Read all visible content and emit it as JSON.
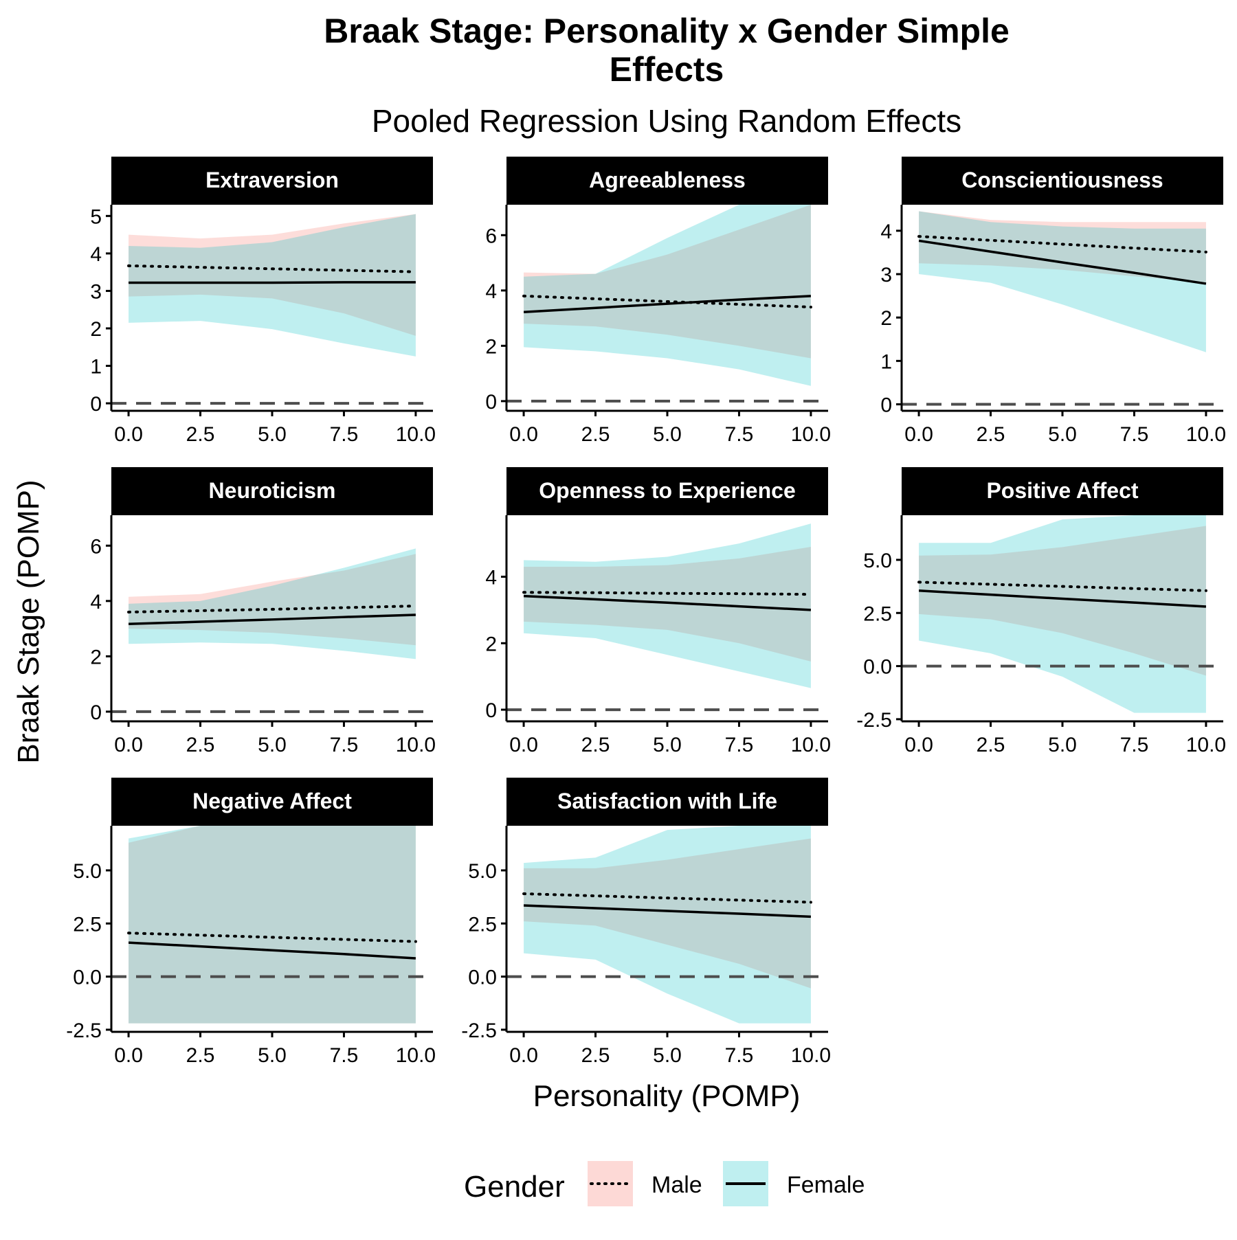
{
  "title": "Braak Stage: Personality x Gender Simple Effects",
  "title_lines": [
    "Braak Stage: Personality x Gender Simple",
    "Effects"
  ],
  "subtitle": "Pooled Regression Using Random Effects",
  "colors": {
    "male": "#F8766D",
    "female": "#00BFC4",
    "line": "#000000",
    "zero": "#4d4d4d",
    "strip": "#000000"
  },
  "chart_data": {
    "type": "line",
    "xlabel": "Personality (POMP)",
    "ylabel": "Braak Stage (POMP)",
    "legend": {
      "title": "Gender",
      "position": "bottom",
      "items": [
        {
          "name": "Male",
          "linetype": "dotted",
          "fill": "#F8766D"
        },
        {
          "name": "Female",
          "linetype": "solid",
          "fill": "#00BFC4"
        }
      ]
    },
    "reference_line": {
      "y": 0,
      "style": "dashed"
    },
    "x_ticks": [
      "0.0",
      "2.5",
      "5.0",
      "7.5",
      "10.0"
    ],
    "xlim": [
      -0.6,
      10.6
    ],
    "panels": [
      {
        "label": "Extraversion",
        "ylim": [
          -0.2,
          5.3
        ],
        "y_ticks": [
          0,
          1,
          2,
          3,
          4,
          5
        ],
        "y_tick_labels": [
          "0",
          "1",
          "2",
          "3",
          "4",
          "5"
        ],
        "x": [
          0,
          2.5,
          5,
          7.5,
          10
        ],
        "series": [
          {
            "name": "Male",
            "mean": [
              3.67,
              3.63,
              3.59,
              3.55,
              3.51
            ],
            "lower": [
              2.85,
              2.9,
              2.8,
              2.4,
              1.8
            ],
            "upper": [
              4.5,
              4.4,
              4.5,
              4.8,
              5.05
            ]
          },
          {
            "name": "Female",
            "mean": [
              3.22,
              3.22,
              3.22,
              3.23,
              3.23
            ],
            "lower": [
              2.15,
              2.2,
              1.98,
              1.6,
              1.25
            ],
            "upper": [
              4.2,
              4.15,
              4.3,
              4.7,
              5.05
            ]
          }
        ]
      },
      {
        "label": "Agreeableness",
        "ylim": [
          -0.35,
          7.1
        ],
        "y_ticks": [
          0,
          2,
          4,
          6
        ],
        "y_tick_labels": [
          "0",
          "2",
          "4",
          "6"
        ],
        "x": [
          0,
          2.5,
          5,
          7.5,
          10
        ],
        "series": [
          {
            "name": "Male",
            "mean": [
              3.8,
              3.7,
              3.6,
              3.5,
              3.4
            ],
            "lower": [
              2.8,
              2.7,
              2.4,
              2.0,
              1.55
            ],
            "upper": [
              4.65,
              4.6,
              5.3,
              6.2,
              7.1
            ]
          },
          {
            "name": "Female",
            "mean": [
              3.22,
              3.37,
              3.52,
              3.67,
              3.8
            ],
            "lower": [
              1.95,
              1.8,
              1.55,
              1.15,
              0.55
            ],
            "upper": [
              4.5,
              4.6,
              5.9,
              7.1,
              7.1
            ]
          }
        ]
      },
      {
        "label": "Conscientiousness",
        "ylim": [
          -0.15,
          4.6
        ],
        "y_ticks": [
          0,
          1,
          2,
          3,
          4
        ],
        "y_tick_labels": [
          "0",
          "1",
          "2",
          "3",
          "4"
        ],
        "x": [
          0,
          2.5,
          5,
          7.5,
          10
        ],
        "series": [
          {
            "name": "Male",
            "mean": [
              3.87,
              3.78,
              3.69,
              3.6,
              3.51
            ],
            "lower": [
              3.25,
              3.2,
              3.1,
              2.95,
              2.8
            ],
            "upper": [
              4.45,
              4.25,
              4.2,
              4.2,
              4.2
            ]
          },
          {
            "name": "Female",
            "mean": [
              3.77,
              3.52,
              3.27,
              3.03,
              2.78
            ],
            "lower": [
              3.0,
              2.8,
              2.3,
              1.75,
              1.2
            ],
            "upper": [
              4.45,
              4.2,
              4.1,
              4.05,
              4.05
            ]
          }
        ]
      },
      {
        "label": "Neuroticism",
        "ylim": [
          -0.35,
          7.1
        ],
        "y_ticks": [
          0,
          2,
          4,
          6
        ],
        "y_tick_labels": [
          "0",
          "2",
          "4",
          "6"
        ],
        "x": [
          0,
          2.5,
          5,
          7.5,
          10
        ],
        "series": [
          {
            "name": "Male",
            "mean": [
              3.6,
              3.65,
              3.7,
              3.76,
              3.82
            ],
            "lower": [
              3.0,
              2.95,
              2.85,
              2.65,
              2.4
            ],
            "upper": [
              4.15,
              4.25,
              4.7,
              5.1,
              5.7
            ]
          },
          {
            "name": "Female",
            "mean": [
              3.17,
              3.25,
              3.33,
              3.42,
              3.5
            ],
            "lower": [
              2.45,
              2.5,
              2.45,
              2.2,
              1.9
            ],
            "upper": [
              3.9,
              4.0,
              4.55,
              5.2,
              5.9
            ]
          }
        ]
      },
      {
        "label": "Openness to Experience",
        "ylim": [
          -0.35,
          5.85
        ],
        "y_ticks": [
          0,
          2,
          4
        ],
        "y_tick_labels": [
          "0",
          "2",
          "4"
        ],
        "x": [
          0,
          2.5,
          5,
          7.5,
          10
        ],
        "series": [
          {
            "name": "Male",
            "mean": [
              3.53,
              3.52,
              3.5,
              3.49,
              3.47
            ],
            "lower": [
              2.65,
              2.55,
              2.4,
              2.0,
              1.45
            ],
            "upper": [
              4.3,
              4.3,
              4.35,
              4.55,
              4.9
            ]
          },
          {
            "name": "Female",
            "mean": [
              3.42,
              3.32,
              3.22,
              3.11,
              3.0
            ],
            "lower": [
              2.3,
              2.15,
              1.65,
              1.15,
              0.65
            ],
            "upper": [
              4.5,
              4.45,
              4.6,
              5.0,
              5.6
            ]
          }
        ]
      },
      {
        "label": "Positive Affect",
        "ylim": [
          -2.6,
          7.1
        ],
        "y_ticks": [
          -2.5,
          0,
          2.5,
          5
        ],
        "y_tick_labels": [
          "-2.5",
          "0.0",
          "2.5",
          "5.0"
        ],
        "x": [
          0,
          2.5,
          5,
          7.5,
          10
        ],
        "series": [
          {
            "name": "Male",
            "mean": [
              3.95,
              3.85,
              3.75,
              3.65,
              3.55
            ],
            "lower": [
              2.45,
              2.2,
              1.55,
              0.6,
              -0.45
            ],
            "upper": [
              5.2,
              5.25,
              5.6,
              6.1,
              6.6
            ]
          },
          {
            "name": "Female",
            "mean": [
              3.55,
              3.36,
              3.17,
              2.99,
              2.8
            ],
            "lower": [
              1.2,
              0.6,
              -0.5,
              -2.2,
              -2.2
            ],
            "upper": [
              5.8,
              5.8,
              6.9,
              7.1,
              7.1
            ]
          }
        ]
      },
      {
        "label": "Negative Affect",
        "ylim": [
          -2.6,
          7.1
        ],
        "y_ticks": [
          -2.5,
          0,
          2.5,
          5
        ],
        "y_tick_labels": [
          "-2.5",
          "0.0",
          "2.5",
          "5.0"
        ],
        "x": [
          0,
          2.5,
          5,
          7.5,
          10
        ],
        "series": [
          {
            "name": "Male",
            "mean": [
              2.05,
              1.95,
              1.85,
              1.75,
              1.65
            ],
            "lower": [
              -2.2,
              -2.2,
              -2.2,
              -2.2,
              -2.2
            ],
            "upper": [
              6.3,
              7.1,
              7.1,
              7.1,
              7.1
            ]
          },
          {
            "name": "Female",
            "mean": [
              1.6,
              1.42,
              1.24,
              1.06,
              0.86
            ],
            "lower": [
              -2.2,
              -2.2,
              -2.2,
              -2.2,
              -2.2
            ],
            "upper": [
              6.5,
              7.1,
              7.1,
              7.1,
              7.1
            ]
          }
        ]
      },
      {
        "label": "Satisfaction with Life",
        "ylim": [
          -2.6,
          7.1
        ],
        "y_ticks": [
          -2.5,
          0,
          2.5,
          5
        ],
        "y_tick_labels": [
          "-2.5",
          "0.0",
          "2.5",
          "5.0"
        ],
        "x": [
          0,
          2.5,
          5,
          7.5,
          10
        ],
        "series": [
          {
            "name": "Male",
            "mean": [
              3.9,
              3.8,
              3.7,
              3.6,
              3.5
            ],
            "lower": [
              2.6,
              2.4,
              1.5,
              0.6,
              -0.55
            ],
            "upper": [
              5.1,
              5.1,
              5.5,
              6.0,
              6.5
            ]
          },
          {
            "name": "Female",
            "mean": [
              3.35,
              3.22,
              3.09,
              2.96,
              2.82
            ],
            "lower": [
              1.1,
              0.8,
              -0.8,
              -2.2,
              -2.2
            ],
            "upper": [
              5.35,
              5.6,
              6.9,
              7.1,
              7.1
            ]
          }
        ]
      }
    ]
  }
}
